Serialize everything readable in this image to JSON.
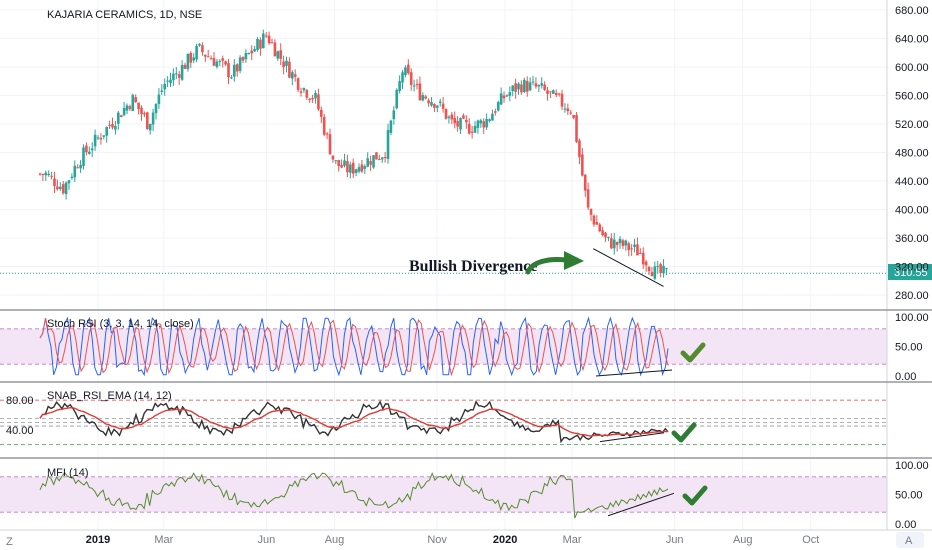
{
  "chart_data": [
    {
      "type": "candlestick",
      "title": "KAJARIA CERAMICS, 1D, NSE",
      "y_ticks": [
        "680.00",
        "640.00",
        "600.00",
        "560.00",
        "520.00",
        "480.00",
        "440.00",
        "400.00",
        "360.00",
        "320.00",
        "280.00"
      ],
      "ylim": [
        270,
        685
      ],
      "last_price": "310.55",
      "annotation": "Bullish Divergence",
      "grid": true,
      "closes_by_month": [
        {
          "date": "2018-11-15",
          "close": 450
        },
        {
          "date": "2018-12-01",
          "close": 430
        },
        {
          "date": "2018-12-15",
          "close": 470
        },
        {
          "date": "2019-01-01",
          "close": 500
        },
        {
          "date": "2019-01-15",
          "close": 525
        },
        {
          "date": "2019-02-01",
          "close": 555
        },
        {
          "date": "2019-02-15",
          "close": 520
        },
        {
          "date": "2019-03-01",
          "close": 575
        },
        {
          "date": "2019-03-15",
          "close": 595
        },
        {
          "date": "2019-04-01",
          "close": 625
        },
        {
          "date": "2019-04-15",
          "close": 610
        },
        {
          "date": "2019-05-01",
          "close": 590
        },
        {
          "date": "2019-05-15",
          "close": 615
        },
        {
          "date": "2019-06-01",
          "close": 645
        },
        {
          "date": "2019-06-15",
          "close": 610
        },
        {
          "date": "2019-07-01",
          "close": 575
        },
        {
          "date": "2019-07-15",
          "close": 555
        },
        {
          "date": "2019-08-01",
          "close": 465
        },
        {
          "date": "2019-08-15",
          "close": 455
        },
        {
          "date": "2019-09-01",
          "close": 470
        },
        {
          "date": "2019-09-15",
          "close": 480
        },
        {
          "date": "2019-10-01",
          "close": 595
        },
        {
          "date": "2019-10-15",
          "close": 565
        },
        {
          "date": "2019-11-01",
          "close": 550
        },
        {
          "date": "2019-11-15",
          "close": 520
        },
        {
          "date": "2019-12-01",
          "close": 515
        },
        {
          "date": "2019-12-15",
          "close": 525
        },
        {
          "date": "2020-01-01",
          "close": 560
        },
        {
          "date": "2020-01-15",
          "close": 575
        },
        {
          "date": "2020-02-01",
          "close": 570
        },
        {
          "date": "2020-02-15",
          "close": 555
        },
        {
          "date": "2020-03-01",
          "close": 540
        },
        {
          "date": "2020-03-15",
          "close": 400
        },
        {
          "date": "2020-04-01",
          "close": 355
        },
        {
          "date": "2020-04-15",
          "close": 350
        },
        {
          "date": "2020-05-01",
          "close": 340
        },
        {
          "date": "2020-05-15",
          "close": 310
        }
      ],
      "x_tick_labels": [
        "2019",
        "Mar",
        "Jun",
        "Aug",
        "Nov",
        "2020",
        "Mar",
        "Jun",
        "Aug",
        "Oct"
      ]
    },
    {
      "type": "line",
      "title": "Stoch RSI (3, 3, 14, 14, close)",
      "y_ticks": [
        "100.00",
        "50.00",
        "0.00"
      ],
      "ylim": [
        0,
        100
      ],
      "band": [
        20,
        80
      ]
    },
    {
      "type": "line",
      "title": "SNAB_RSI_EMA (14, 12)",
      "y_ticks": [
        "80.00",
        "40.00"
      ],
      "levels": [
        80,
        50,
        20
      ]
    },
    {
      "type": "line",
      "title": "MFI (14)",
      "y_ticks": [
        "100.00",
        "50.00",
        "0.00"
      ],
      "ylim": [
        0,
        100
      ],
      "band": [
        20,
        80
      ]
    }
  ],
  "footer": {
    "left_button": "Z",
    "right_button": "A"
  },
  "colors": {
    "up": "#26a69a",
    "down": "#ef5350",
    "band": "#e1bee7",
    "stoch_k": "#2962ff",
    "stoch_d": "#ef5350",
    "rsi": "#333333",
    "ema": "#e53935",
    "mfi": "#4caf50",
    "arrow": "#2e7d32",
    "check": "#2e7d32"
  }
}
